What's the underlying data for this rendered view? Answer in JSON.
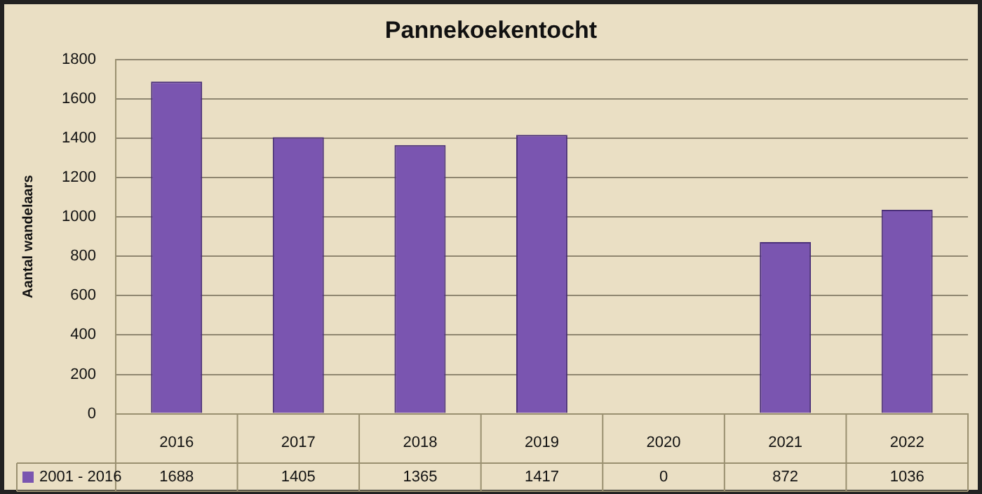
{
  "chart_data": {
    "type": "bar",
    "title": "Pannekoekentocht",
    "ylabel": "Aantal wandelaars",
    "categories": [
      "2016",
      "2017",
      "2018",
      "2019",
      "2020",
      "2021",
      "2022"
    ],
    "series": [
      {
        "name": "2001 - 2016",
        "color": "#7a55b0",
        "values": [
          1688,
          1405,
          1365,
          1417,
          0,
          872,
          1036
        ]
      }
    ],
    "ylim": [
      0,
      1800
    ],
    "yticks": [
      0,
      200,
      400,
      600,
      800,
      1000,
      1200,
      1400,
      1600,
      1800
    ],
    "grid": "y",
    "legend": "bottom",
    "data_labels": true
  }
}
